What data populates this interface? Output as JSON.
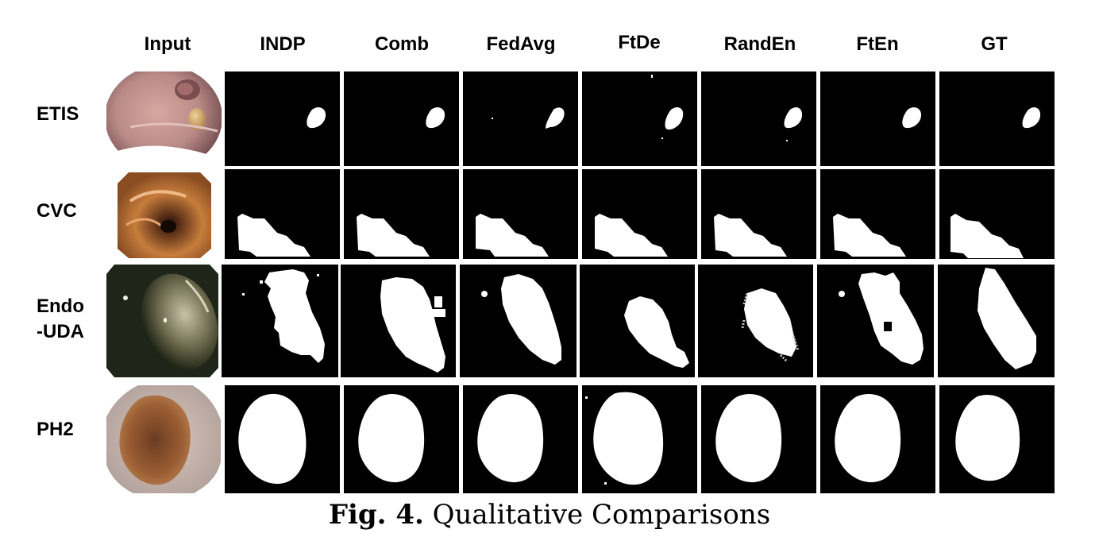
{
  "columns": [
    "Input",
    "INDP",
    "Comb",
    "FedAvg",
    "FtDe",
    "RandEn",
    "FtEn",
    "GT"
  ],
  "rows": [
    {
      "label": "ETIS"
    },
    {
      "label": "CVC"
    },
    {
      "label": "Endo\n-UDA"
    },
    {
      "label": "PH2"
    }
  ],
  "caption": {
    "label": "Fig. 4.",
    "text": "Qualitative Comparisons"
  }
}
